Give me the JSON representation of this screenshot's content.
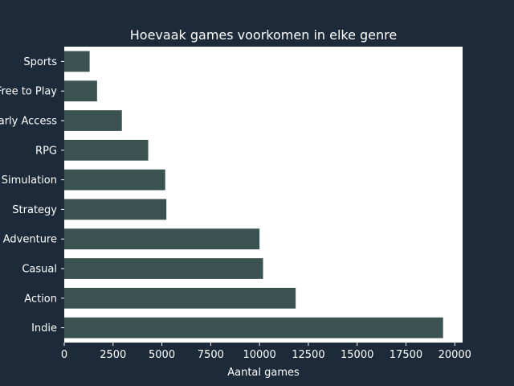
{
  "colors": {
    "background": "#1c2a3a",
    "plot_background": "#ffffff",
    "bar": "#3a5250",
    "text": "#ffffff"
  },
  "chart_data": {
    "type": "bar",
    "orientation": "horizontal",
    "title": "Hoevaak games voorkomen in elke genre",
    "xlabel": "Aantal games",
    "ylabel": "",
    "categories": [
      "Indie",
      "Action",
      "Casual",
      "Adventure",
      "Strategy",
      "Simulation",
      "RPG",
      "Early Access",
      "Free to Play",
      "Sports"
    ],
    "values": [
      19400,
      11850,
      10180,
      10000,
      5230,
      5170,
      4300,
      2950,
      1680,
      1300
    ],
    "xlim": [
      0,
      20400
    ],
    "xticks": [
      0,
      2500,
      5000,
      7500,
      10000,
      12500,
      15000,
      17500,
      20000
    ],
    "grid": false,
    "legend": "none"
  }
}
